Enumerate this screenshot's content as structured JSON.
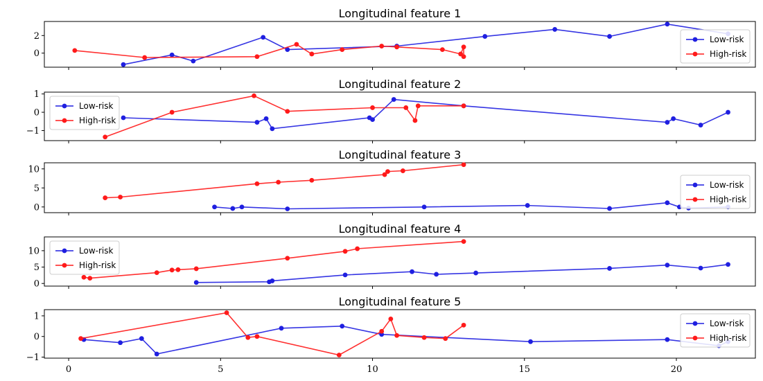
{
  "colors": {
    "low": "#1f1fe0",
    "high": "#ff1a1a"
  },
  "xticks": [
    0,
    5,
    10,
    15,
    20
  ],
  "chart_data": [
    {
      "type": "line",
      "title": "Longitudinal feature 1",
      "xlim": [
        -0.8,
        22.6
      ],
      "ylim": [
        -1.6,
        3.6
      ],
      "yticks": [
        0,
        2
      ],
      "legend": "lower-right",
      "series": [
        {
          "name": "Low-risk",
          "color": "low",
          "x": [
            1.8,
            3.4,
            4.1,
            6.4,
            7.2,
            10.8,
            13.7,
            16.0,
            17.8,
            19.7,
            21.7
          ],
          "y": [
            -1.3,
            -0.2,
            -0.9,
            1.8,
            0.4,
            0.8,
            1.9,
            2.7,
            1.9,
            3.3,
            2.2
          ]
        },
        {
          "name": "High-risk",
          "color": "high",
          "x": [
            0.2,
            2.5,
            6.2,
            7.5,
            8.0,
            9.0,
            10.3,
            10.8,
            12.3,
            12.9,
            13.0,
            13.0
          ],
          "y": [
            0.3,
            -0.5,
            -0.4,
            1.0,
            -0.1,
            0.4,
            0.8,
            0.7,
            0.4,
            -0.1,
            0.7,
            -0.4
          ]
        }
      ]
    },
    {
      "type": "line",
      "title": "Longitudinal feature 2",
      "xlim": [
        -0.8,
        22.6
      ],
      "ylim": [
        -1.55,
        1.1
      ],
      "yticks": [
        -1,
        0,
        1
      ],
      "legend": "upper-left",
      "series": [
        {
          "name": "Low-risk",
          "color": "low",
          "x": [
            1.8,
            6.2,
            6.5,
            6.7,
            9.9,
            10.0,
            10.7,
            13.0,
            19.7,
            19.9,
            20.8,
            21.7
          ],
          "y": [
            -0.3,
            -0.55,
            -0.35,
            -0.9,
            -0.3,
            -0.4,
            0.7,
            0.35,
            -0.55,
            -0.35,
            -0.7,
            0.0
          ]
        },
        {
          "name": "High-risk",
          "color": "high",
          "x": [
            1.2,
            3.4,
            6.1,
            7.2,
            10.0,
            11.1,
            11.4,
            11.5,
            13.0
          ],
          "y": [
            -1.35,
            0.0,
            0.9,
            0.05,
            0.25,
            0.25,
            -0.45,
            0.35,
            0.35
          ]
        }
      ]
    },
    {
      "type": "line",
      "title": "Longitudinal feature 3",
      "xlim": [
        -0.8,
        22.6
      ],
      "ylim": [
        -1.5,
        11.6
      ],
      "yticks": [
        0,
        5,
        10
      ],
      "legend": "lower-right",
      "series": [
        {
          "name": "Low-risk",
          "color": "low",
          "x": [
            4.8,
            5.4,
            5.7,
            7.2,
            11.7,
            15.1,
            17.8,
            19.7,
            20.1,
            20.4,
            21.7
          ],
          "y": [
            0.0,
            -0.4,
            0.0,
            -0.5,
            0.0,
            0.4,
            -0.4,
            1.1,
            0.0,
            -0.3,
            0.0
          ]
        },
        {
          "name": "High-risk",
          "color": "high",
          "x": [
            1.2,
            1.7,
            6.2,
            6.9,
            8.0,
            10.4,
            10.5,
            11.0,
            13.0
          ],
          "y": [
            2.4,
            2.6,
            6.1,
            6.5,
            7.0,
            8.5,
            9.3,
            9.5,
            11.1
          ]
        }
      ]
    },
    {
      "type": "line",
      "title": "Longitudinal feature 4",
      "xlim": [
        -0.8,
        22.6
      ],
      "ylim": [
        -0.8,
        14.2
      ],
      "yticks": [
        0,
        5,
        10
      ],
      "legend": "upper-left",
      "series": [
        {
          "name": "Low-risk",
          "color": "low",
          "x": [
            4.2,
            6.6,
            6.7,
            9.1,
            11.3,
            12.1,
            13.4,
            17.8,
            19.7,
            20.8,
            21.7
          ],
          "y": [
            0.3,
            0.5,
            0.8,
            2.6,
            3.6,
            2.8,
            3.2,
            4.6,
            5.6,
            4.7,
            5.8
          ]
        },
        {
          "name": "High-risk",
          "color": "high",
          "x": [
            0.5,
            0.7,
            2.9,
            3.4,
            3.6,
            4.2,
            7.2,
            9.1,
            9.5,
            13.0
          ],
          "y": [
            1.9,
            1.6,
            3.3,
            4.1,
            4.2,
            4.5,
            7.7,
            9.8,
            10.6,
            12.8
          ]
        }
      ]
    },
    {
      "type": "line",
      "title": "Longitudinal feature 5",
      "xlim": [
        -0.8,
        22.6
      ],
      "ylim": [
        -1.05,
        1.3
      ],
      "yticks": [
        -1,
        0,
        1
      ],
      "legend": "upper-right",
      "series": [
        {
          "name": "Low-risk",
          "color": "low",
          "x": [
            0.5,
            1.7,
            2.4,
            2.9,
            7.0,
            9.0,
            10.3,
            15.2,
            19.7,
            21.4,
            21.7
          ],
          "y": [
            -0.15,
            -0.3,
            -0.1,
            -0.85,
            0.4,
            0.5,
            0.1,
            -0.25,
            -0.15,
            -0.45,
            -0.25
          ]
        },
        {
          "name": "High-risk",
          "color": "high",
          "x": [
            0.4,
            5.2,
            5.9,
            6.2,
            10.3,
            10.6,
            10.8,
            11.7,
            12.4,
            13.0,
            8.9
          ],
          "y": [
            -0.1,
            1.15,
            -0.05,
            0.0,
            0.25,
            0.85,
            0.05,
            -0.05,
            -0.1,
            0.55,
            -0.9
          ],
          "order": [
            0,
            1,
            2,
            3,
            10,
            4,
            5,
            6,
            7,
            8,
            9
          ]
        }
      ]
    }
  ]
}
